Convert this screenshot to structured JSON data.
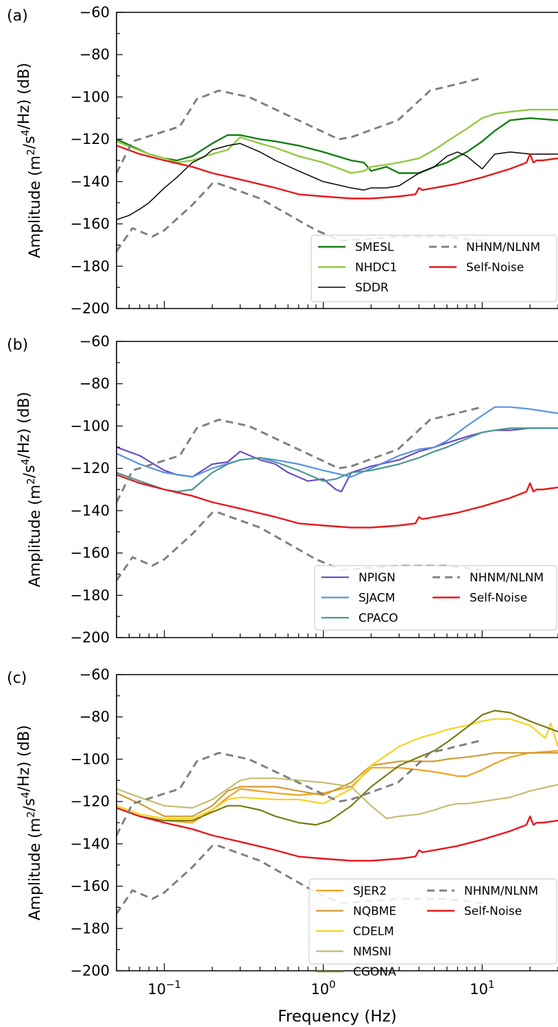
{
  "chart_data": [
    {
      "type": "line",
      "panel_label": "(a)",
      "ylabel": "Amplitude (m²/s⁴/Hz) (dB)",
      "xlabel": "",
      "xscale": "log",
      "xlim": [
        0.05,
        30
      ],
      "ylim": [
        -200,
        -60
      ],
      "yticks": [
        "−60",
        "−80",
        "−100",
        "−120",
        "−140",
        "−160",
        "−180",
        "−200"
      ],
      "legend_position": "lower-right",
      "series": [
        {
          "name": "SMESL",
          "color": "#137d13",
          "width": 2.4,
          "x": [
            0.05,
            0.08,
            0.1,
            0.12,
            0.15,
            0.2,
            0.25,
            0.3,
            0.4,
            0.5,
            0.7,
            1.0,
            1.5,
            1.8,
            2.0,
            2.5,
            3,
            4,
            5,
            6,
            8,
            10,
            12,
            15,
            20,
            30
          ],
          "y": [
            -120,
            -127,
            -129,
            -130,
            -128,
            -122,
            -118,
            -118,
            -120,
            -121,
            -123,
            -126,
            -130,
            -131,
            -135,
            -133,
            -136,
            -136,
            -133,
            -131,
            -126,
            -121,
            -116,
            -111,
            -110,
            -111
          ]
        },
        {
          "name": "NHDC1",
          "color": "#92c940",
          "width": 2.4,
          "x": [
            0.05,
            0.08,
            0.1,
            0.12,
            0.15,
            0.2,
            0.25,
            0.3,
            0.4,
            0.5,
            0.7,
            1.0,
            1.5,
            1.8,
            2.0,
            2.5,
            3,
            4,
            5,
            6,
            8,
            10,
            12,
            15,
            20,
            30
          ],
          "y": [
            -121,
            -127,
            -129,
            -131,
            -130,
            -127,
            -125,
            -119,
            -122,
            -124,
            -128,
            -131,
            -136,
            -135,
            -133,
            -132,
            -131,
            -129,
            -125,
            -121,
            -115,
            -110,
            -108,
            -107,
            -106,
            -106
          ]
        },
        {
          "name": "SDDR",
          "color": "#000000",
          "width": 1.5,
          "x": [
            0.05,
            0.06,
            0.07,
            0.08,
            0.1,
            0.12,
            0.15,
            0.18,
            0.2,
            0.25,
            0.3,
            0.4,
            0.5,
            0.7,
            1.0,
            1.5,
            1.8,
            2.0,
            2.5,
            3,
            4,
            5,
            6,
            7,
            8,
            10,
            12,
            15,
            20,
            30
          ],
          "y": [
            -158,
            -156,
            -153,
            -150,
            -143,
            -138,
            -131,
            -128,
            -125,
            -123,
            -122,
            -126,
            -130,
            -135,
            -140,
            -143,
            -144,
            -143,
            -143,
            -142,
            -136,
            -133,
            -128,
            -126,
            -128,
            -134,
            -127,
            -126,
            -127,
            -127
          ]
        },
        {
          "name": "Self-Noise",
          "color": "#e8171b",
          "width": 2.4,
          "x": [
            0.05,
            0.07,
            0.1,
            0.15,
            0.2,
            0.3,
            0.5,
            0.7,
            1.0,
            1.5,
            2.0,
            3,
            3.8,
            4.0,
            4.2,
            5,
            7,
            10,
            15,
            19,
            20,
            21,
            22,
            24,
            30
          ],
          "y": [
            -123,
            -127,
            -130,
            -133,
            -136,
            -139,
            -143,
            -146,
            -147,
            -148,
            -148,
            -147,
            -146,
            -143,
            -144,
            -143,
            -141,
            -138,
            -134,
            -131,
            -127,
            -131,
            -130,
            -130,
            -129
          ]
        },
        {
          "name": "NHNM/NLNM",
          "color": "#808080",
          "width": 3,
          "dash": "11,7",
          "x": [
            0.05,
            0.063,
            0.125,
            0.16,
            0.22,
            0.34,
            1.25,
            1.5,
            2.95,
            4.7,
            10
          ],
          "y": [
            -136,
            -121,
            -114,
            -101,
            -97,
            -100,
            -120,
            -119,
            -111,
            -97,
            -91
          ]
        },
        {
          "name": "",
          "color": "#808080",
          "width": 3,
          "dash": "11,7",
          "x": [
            0.05,
            0.063,
            0.084,
            0.1,
            0.15,
            0.2,
            0.22,
            0.4,
            0.9,
            1.3,
            3,
            6,
            10
          ],
          "y": [
            -173,
            -162,
            -166,
            -163,
            -151,
            -141,
            -141,
            -148,
            -163,
            -168,
            -166,
            -166,
            -168
          ]
        }
      ]
    },
    {
      "type": "line",
      "panel_label": "(b)",
      "ylabel": "Amplitude (m²/s⁴/Hz) (dB)",
      "xlabel": "",
      "xscale": "log",
      "xlim": [
        0.05,
        30
      ],
      "ylim": [
        -200,
        -60
      ],
      "yticks": [
        "−60",
        "−80",
        "−100",
        "−120",
        "−140",
        "−160",
        "−180",
        "−200"
      ],
      "legend_position": "lower-right",
      "series": [
        {
          "name": "NPIGN",
          "color": "#6a4bc4",
          "width": 2.2,
          "x": [
            0.05,
            0.07,
            0.1,
            0.12,
            0.15,
            0.2,
            0.25,
            0.3,
            0.4,
            0.5,
            0.6,
            0.8,
            1.0,
            1.2,
            1.3,
            1.5,
            2.0,
            3,
            4,
            5,
            6,
            8,
            10,
            12,
            15,
            20,
            30
          ],
          "y": [
            -110,
            -114,
            -121,
            -123,
            -124,
            -118,
            -117,
            -112,
            -116,
            -118,
            -122,
            -126,
            -125,
            -130,
            -131,
            -122,
            -119,
            -116,
            -112,
            -110,
            -108,
            -105,
            -103,
            -102,
            -102,
            -101,
            -101
          ]
        },
        {
          "name": "SJACM",
          "color": "#5591e2",
          "width": 2.2,
          "x": [
            0.05,
            0.07,
            0.1,
            0.15,
            0.2,
            0.3,
            0.4,
            0.5,
            0.7,
            1.0,
            1.5,
            2.0,
            3,
            4,
            5,
            6,
            8,
            10,
            12,
            15,
            20,
            30
          ],
          "y": [
            -113,
            -118,
            -122,
            -124,
            -120,
            -116,
            -115,
            -116,
            -118,
            -121,
            -124,
            -120,
            -114,
            -111,
            -110,
            -107,
            -100,
            -95,
            -91,
            -91,
            -92,
            -94
          ]
        },
        {
          "name": "CPACO",
          "color": "#4a9595",
          "width": 2.2,
          "x": [
            0.05,
            0.07,
            0.1,
            0.12,
            0.15,
            0.2,
            0.25,
            0.3,
            0.4,
            0.5,
            0.7,
            1.0,
            1.2,
            1.5,
            2.0,
            3,
            4,
            5,
            6,
            8,
            10,
            12,
            15,
            20,
            30
          ],
          "y": [
            -122,
            -126,
            -130,
            -131,
            -130,
            -122,
            -118,
            -116,
            -115,
            -117,
            -121,
            -126,
            -125,
            -122,
            -121,
            -118,
            -115,
            -112,
            -110,
            -106,
            -103,
            -102,
            -101,
            -101,
            -101
          ]
        },
        {
          "name": "Self-Noise",
          "color": "#e8171b",
          "width": 2.4,
          "x": [
            0.05,
            0.07,
            0.1,
            0.15,
            0.2,
            0.3,
            0.5,
            0.7,
            1.0,
            1.5,
            2.0,
            3,
            3.8,
            4.0,
            4.2,
            5,
            7,
            10,
            15,
            19,
            20,
            21,
            22,
            24,
            30
          ],
          "y": [
            -123,
            -127,
            -130,
            -133,
            -136,
            -139,
            -143,
            -146,
            -147,
            -148,
            -148,
            -147,
            -146,
            -143,
            -144,
            -143,
            -141,
            -138,
            -134,
            -131,
            -127,
            -131,
            -130,
            -130,
            -129
          ]
        },
        {
          "name": "NHNM/NLNM",
          "color": "#808080",
          "width": 3,
          "dash": "11,7",
          "x": [
            0.05,
            0.063,
            0.125,
            0.16,
            0.22,
            0.34,
            1.25,
            1.5,
            2.95,
            4.7,
            10
          ],
          "y": [
            -136,
            -121,
            -114,
            -101,
            -97,
            -100,
            -120,
            -119,
            -111,
            -97,
            -91
          ]
        },
        {
          "name": "",
          "color": "#808080",
          "width": 3,
          "dash": "11,7",
          "x": [
            0.05,
            0.063,
            0.084,
            0.1,
            0.15,
            0.2,
            0.22,
            0.4,
            0.9,
            1.3,
            3,
            6,
            10
          ],
          "y": [
            -173,
            -162,
            -166,
            -163,
            -151,
            -141,
            -141,
            -148,
            -163,
            -168,
            -166,
            -166,
            -168
          ]
        }
      ]
    },
    {
      "type": "line",
      "panel_label": "(c)",
      "ylabel": "Amplitude (m²/s⁴/Hz) (dB)",
      "xlabel": "Frequency (Hz)",
      "xscale": "log",
      "xlim": [
        0.05,
        30
      ],
      "ylim": [
        -200,
        -60
      ],
      "yticks": [
        "−60",
        "−80",
        "−100",
        "−120",
        "−140",
        "−160",
        "−180",
        "−200"
      ],
      "xticks": [
        {
          "base": "10",
          "exp": "−1",
          "value": 0.1
        },
        {
          "base": "10",
          "exp": "0",
          "value": 1
        },
        {
          "base": "10",
          "exp": "1",
          "value": 10
        }
      ],
      "legend_position": "lower-right",
      "series": [
        {
          "name": "SJER2",
          "color": "#f1a020",
          "width": 2.2,
          "x": [
            0.05,
            0.07,
            0.1,
            0.15,
            0.2,
            0.25,
            0.3,
            0.5,
            0.7,
            1.0,
            1.5,
            2.0,
            3,
            4,
            5,
            6,
            7,
            8,
            10,
            12,
            15,
            20,
            30
          ],
          "y": [
            -123,
            -127,
            -129,
            -130,
            -124,
            -118,
            -114,
            -116,
            -117,
            -116,
            -113,
            -104,
            -104,
            -105,
            -106,
            -107,
            -108,
            -108,
            -105,
            -102,
            -99,
            -97,
            -96
          ]
        },
        {
          "name": "NQBME",
          "color": "#d09a30",
          "width": 2.2,
          "x": [
            0.05,
            0.07,
            0.1,
            0.15,
            0.2,
            0.25,
            0.3,
            0.5,
            0.7,
            1.0,
            1.5,
            2.0,
            3,
            4,
            5,
            6,
            8,
            10,
            12,
            15,
            20,
            30
          ],
          "y": [
            -116,
            -121,
            -127,
            -127,
            -122,
            -115,
            -113,
            -113,
            -115,
            -117,
            -111,
            -103,
            -101,
            -101,
            -101,
            -100,
            -99,
            -98,
            -97,
            -97,
            -97,
            -97
          ]
        },
        {
          "name": "CDELM",
          "color": "#f5d41b",
          "width": 2.2,
          "x": [
            0.05,
            0.07,
            0.1,
            0.15,
            0.2,
            0.25,
            0.3,
            0.5,
            0.7,
            1.0,
            1.5,
            2.0,
            3,
            4,
            5,
            6,
            8,
            10,
            12,
            15,
            20,
            25,
            27,
            30
          ],
          "y": [
            -122,
            -126,
            -128,
            -128,
            -124,
            -119,
            -118,
            -119,
            -119,
            -121,
            -114,
            -103,
            -94,
            -90,
            -88,
            -86,
            -84,
            -82,
            -81,
            -81,
            -84,
            -90,
            -83,
            -94
          ]
        },
        {
          "name": "NMSNI",
          "color": "#c3bc6e",
          "width": 2.2,
          "x": [
            0.05,
            0.07,
            0.1,
            0.15,
            0.2,
            0.3,
            0.35,
            0.5,
            0.7,
            1.0,
            1.5,
            2.0,
            2.5,
            3,
            4,
            5,
            6,
            7,
            8,
            10,
            15,
            20,
            30
          ],
          "y": [
            -114,
            -118,
            -122,
            -123,
            -119,
            -110,
            -109,
            -109,
            -110,
            -111,
            -113,
            -122,
            -128,
            -127,
            -126,
            -124,
            -122,
            -121,
            -121,
            -120,
            -118,
            -115,
            -112
          ]
        },
        {
          "name": "CGONA",
          "color": "#777a10",
          "width": 2.2,
          "x": [
            0.05,
            0.07,
            0.1,
            0.15,
            0.2,
            0.25,
            0.3,
            0.4,
            0.5,
            0.7,
            0.9,
            1.1,
            1.5,
            2.0,
            3,
            4,
            5,
            6,
            8,
            10,
            12,
            15,
            20,
            30
          ],
          "y": [
            -123,
            -127,
            -129,
            -129,
            -125,
            -122,
            -122,
            -124,
            -127,
            -130,
            -131,
            -129,
            -122,
            -113,
            -103,
            -99,
            -96,
            -92,
            -85,
            -79,
            -77,
            -78,
            -82,
            -87
          ]
        },
        {
          "name": "Self-Noise",
          "color": "#e8171b",
          "width": 2.4,
          "x": [
            0.05,
            0.07,
            0.1,
            0.15,
            0.2,
            0.3,
            0.5,
            0.7,
            1.0,
            1.5,
            2.0,
            3,
            3.8,
            4.0,
            4.2,
            5,
            7,
            10,
            15,
            19,
            20,
            21,
            22,
            24,
            30
          ],
          "y": [
            -123,
            -127,
            -130,
            -133,
            -136,
            -139,
            -143,
            -146,
            -147,
            -148,
            -148,
            -147,
            -146,
            -143,
            -144,
            -143,
            -141,
            -138,
            -134,
            -131,
            -127,
            -131,
            -130,
            -130,
            -129
          ]
        },
        {
          "name": "NHNM/NLNM",
          "color": "#808080",
          "width": 3,
          "dash": "11,7",
          "x": [
            0.05,
            0.063,
            0.125,
            0.16,
            0.22,
            0.34,
            1.25,
            1.5,
            2.95,
            4.7,
            10
          ],
          "y": [
            -136,
            -121,
            -114,
            -101,
            -97,
            -100,
            -120,
            -119,
            -111,
            -97,
            -91
          ]
        },
        {
          "name": "",
          "color": "#808080",
          "width": 3,
          "dash": "11,7",
          "x": [
            0.05,
            0.063,
            0.084,
            0.1,
            0.15,
            0.2,
            0.22,
            0.4,
            0.9,
            1.3,
            3,
            6,
            10
          ],
          "y": [
            -173,
            -162,
            -166,
            -163,
            -151,
            -141,
            -141,
            -148,
            -163,
            -168,
            -166,
            -166,
            -168
          ]
        }
      ]
    }
  ]
}
